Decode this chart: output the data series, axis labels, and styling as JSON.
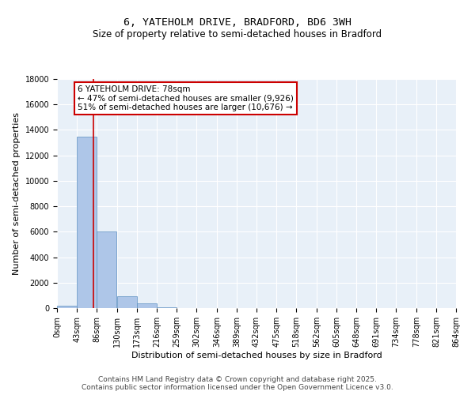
{
  "title_line1": "6, YATEHOLM DRIVE, BRADFORD, BD6 3WH",
  "title_line2": "Size of property relative to semi-detached houses in Bradford",
  "xlabel": "Distribution of semi-detached houses by size in Bradford",
  "ylabel": "Number of semi-detached properties",
  "bin_labels": [
    "0sqm",
    "43sqm",
    "86sqm",
    "130sqm",
    "173sqm",
    "216sqm",
    "259sqm",
    "302sqm",
    "346sqm",
    "389sqm",
    "432sqm",
    "475sqm",
    "518sqm",
    "562sqm",
    "605sqm",
    "648sqm",
    "691sqm",
    "734sqm",
    "778sqm",
    "821sqm",
    "864sqm"
  ],
  "bar_values": [
    200,
    13500,
    6000,
    950,
    350,
    80,
    0,
    0,
    0,
    0,
    0,
    0,
    0,
    0,
    0,
    0,
    0,
    0,
    0,
    0
  ],
  "bin_edges": [
    0,
    43,
    86,
    130,
    173,
    216,
    259,
    302,
    346,
    389,
    432,
    475,
    518,
    562,
    605,
    648,
    691,
    734,
    778,
    821,
    864
  ],
  "bar_color": "#aec6e8",
  "bar_edge_color": "#5a8fc0",
  "property_size": 78,
  "vline_color": "#cc0000",
  "annotation_line1": "6 YATEHOLM DRIVE: 78sqm",
  "annotation_line2": "← 47% of semi-detached houses are smaller (9,926)",
  "annotation_line3": "51% of semi-detached houses are larger (10,676) →",
  "annotation_box_color": "white",
  "annotation_box_edge": "#cc0000",
  "ylim": [
    0,
    18000
  ],
  "yticks": [
    0,
    2000,
    4000,
    6000,
    8000,
    10000,
    12000,
    14000,
    16000,
    18000
  ],
  "background_color": "#e8f0f8",
  "grid_color": "#ffffff",
  "footer_line1": "Contains HM Land Registry data © Crown copyright and database right 2025.",
  "footer_line2": "Contains public sector information licensed under the Open Government Licence v3.0.",
  "title_fontsize": 9.5,
  "subtitle_fontsize": 8.5,
  "axis_label_fontsize": 8,
  "tick_fontsize": 7,
  "annotation_fontsize": 7.5,
  "footer_fontsize": 6.5
}
